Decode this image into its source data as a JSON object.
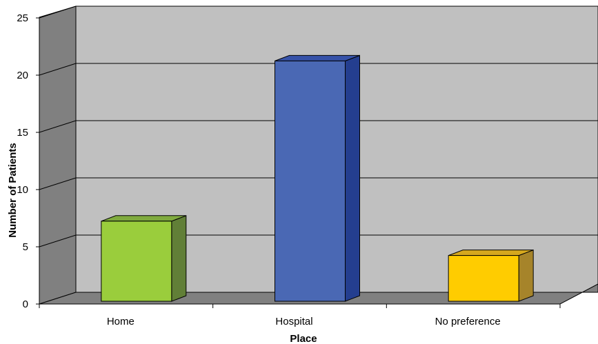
{
  "chart_data": {
    "type": "bar",
    "categories": [
      "Home",
      "Hospital",
      "No preference"
    ],
    "values": [
      7,
      21,
      4
    ],
    "xlabel": "Place",
    "ylabel": "Number of Patients",
    "ylim": [
      0,
      25
    ],
    "yticks": [
      0,
      5,
      10,
      15,
      20,
      25
    ],
    "ytick_labels": [
      "0",
      "5",
      "10",
      "15",
      "20",
      "25"
    ],
    "grid": true,
    "legend": "none",
    "style": "3d",
    "colors": {
      "bars": [
        "#9ACD3C",
        "#4A68B4",
        "#FFCC00"
      ],
      "bar_sides": [
        "#617F37",
        "#243E8F",
        "#A6842A"
      ],
      "bar_tops": [
        "#7FAA3E",
        "#3652A8",
        "#D6A81E"
      ],
      "back_wall": "#C0C0C0",
      "side_wall": "#808080",
      "floor": "#808080"
    }
  }
}
